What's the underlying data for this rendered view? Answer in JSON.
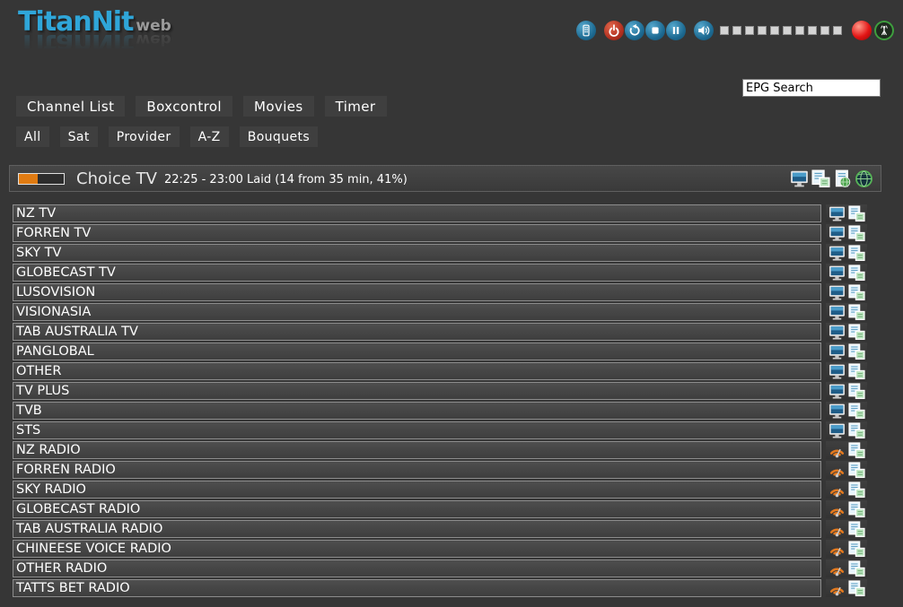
{
  "app": {
    "title": "TitanNit",
    "title_suffix": "web"
  },
  "colors": {
    "accent_blue": "#2fa6d9",
    "page_background": "#363636",
    "button_background": "#3f3f3f",
    "row_border": "#8c8c8c",
    "progress_orange": "#e07b12",
    "control_icon_blue": "#1d6a92",
    "power_red": "#b03020",
    "record_red": "#e31515",
    "stream_green": "#3f9f3f",
    "volume_square_gray": "#d4d4d4",
    "radio_icon_orange": "#e2791f"
  },
  "header": {
    "controls": [
      "remote",
      "power",
      "refresh",
      "stop",
      "pause",
      "volume",
      "record",
      "stream"
    ],
    "volume_segments": 10,
    "epg_search_value": "EPG Search"
  },
  "nav": {
    "primary": [
      "Channel List",
      "Boxcontrol",
      "Movies",
      "Timer"
    ],
    "filters": [
      "All",
      "Sat",
      "Provider",
      "A-Z",
      "Bouquets"
    ]
  },
  "now_playing": {
    "channel": "Choice TV",
    "epg_info": "22:25 - 23:00 Laid (14 from 35 min, 41%)",
    "progress_percent": 41
  },
  "channels": [
    {
      "name": "NZ TV",
      "type": "tv"
    },
    {
      "name": "FORREN TV",
      "type": "tv"
    },
    {
      "name": "SKY TV",
      "type": "tv"
    },
    {
      "name": "GLOBECAST TV",
      "type": "tv"
    },
    {
      "name": "LUSOVISION",
      "type": "tv"
    },
    {
      "name": "VISIONASIA",
      "type": "tv"
    },
    {
      "name": "TAB AUSTRALIA TV",
      "type": "tv"
    },
    {
      "name": "PANGLOBAL",
      "type": "tv"
    },
    {
      "name": "OTHER",
      "type": "tv"
    },
    {
      "name": "TV PLUS",
      "type": "tv"
    },
    {
      "name": "TVB",
      "type": "tv"
    },
    {
      "name": "STS",
      "type": "tv"
    },
    {
      "name": "NZ RADIO",
      "type": "radio"
    },
    {
      "name": "FORREN RADIO",
      "type": "radio"
    },
    {
      "name": "SKY RADIO",
      "type": "radio"
    },
    {
      "name": "GLOBECAST RADIO",
      "type": "radio"
    },
    {
      "name": "TAB AUSTRALIA RADIO",
      "type": "radio"
    },
    {
      "name": "CHINEESE VOICE RADIO",
      "type": "radio"
    },
    {
      "name": "OTHER RADIO",
      "type": "radio"
    },
    {
      "name": "TATTS BET RADIO",
      "type": "radio"
    }
  ]
}
